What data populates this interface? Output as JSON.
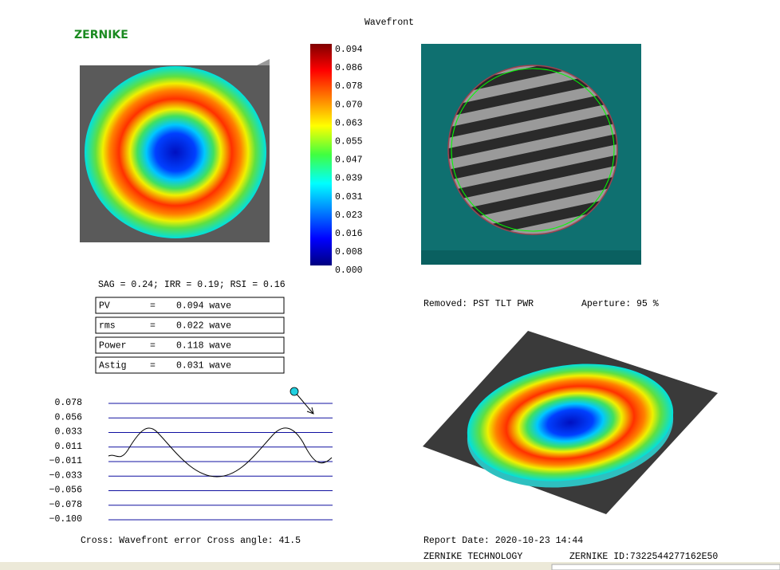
{
  "header": {
    "title": "Wavefront",
    "logo": "ZERNIKE"
  },
  "colorbar": {
    "labels": [
      "0.094",
      "0.086",
      "0.078",
      "0.070",
      "0.063",
      "0.055",
      "0.047",
      "0.039",
      "0.031",
      "0.023",
      "0.016",
      "0.008",
      "0.000"
    ]
  },
  "indices": "SAG = 0.24; IRR = 0.19; RSI = 0.16",
  "table": {
    "rows": [
      [
        "PV",
        "=",
        "0.094 wave"
      ],
      [
        "rms",
        "=",
        "0.022 wave"
      ],
      [
        "Power",
        "=",
        "0.118 wave"
      ],
      [
        "Astig",
        "=",
        "0.031 wave"
      ]
    ]
  },
  "cross_plot": {
    "tick_labels": [
      "0.078",
      "0.056",
      "0.033",
      "0.011",
      "−0.011",
      "−0.033",
      "−0.056",
      "−0.078",
      "−0.100"
    ],
    "caption": "Cross: Wavefront error Cross angle:  41.5"
  },
  "removed": "Removed: PST TLT PWR",
  "aperture": "Aperture: 95 %",
  "footer": {
    "report_date": "Report Date:  2020-10-23 14:44",
    "company": "ZERNIKE TECHNOLOGY",
    "id": "ZERNIKE ID:7322544277162E50"
  }
}
